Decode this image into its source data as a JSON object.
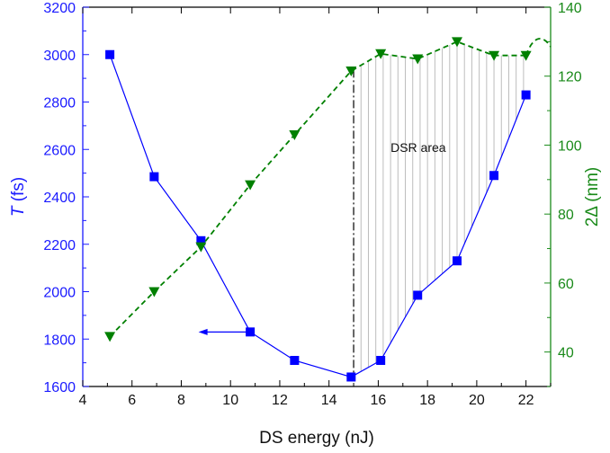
{
  "chart_data": {
    "type": "line",
    "title": "",
    "xlabel": "DS energy (nJ)",
    "ylabel_left_symbol": "T",
    "ylabel_left_unit": " (fs)",
    "ylabel_right": "2Δ (nm)",
    "xlim": [
      4,
      23
    ],
    "ylim_left": [
      1600,
      3200
    ],
    "ylim_right": [
      30,
      140
    ],
    "x_ticks": [
      4,
      6,
      8,
      10,
      12,
      14,
      16,
      18,
      20,
      22
    ],
    "y_left_ticks": [
      1600,
      1800,
      2000,
      2200,
      2400,
      2600,
      2800,
      3000,
      3200
    ],
    "y_right_ticks": [
      40,
      60,
      80,
      100,
      120,
      140
    ],
    "grid": false,
    "series": [
      {
        "axis": "left",
        "color": "#0000ff",
        "marker": "square",
        "line": "solid",
        "x": [
          5.1,
          6.9,
          8.8,
          10.8,
          12.6,
          14.9,
          16.1,
          17.6,
          19.2,
          20.7,
          22.0
        ],
        "y": [
          3000,
          2485,
          2215,
          1830,
          1710,
          1640,
          1710,
          1985,
          2130,
          2490,
          2830
        ]
      },
      {
        "axis": "right",
        "color": "#008000",
        "marker": "triangle-down",
        "line": "dashed",
        "x": [
          5.1,
          6.9,
          8.8,
          10.8,
          12.6,
          14.9,
          16.1,
          17.6,
          19.2,
          20.7,
          22.0
        ],
        "y": [
          44.5,
          57.5,
          70.5,
          88.5,
          103,
          121.5,
          126.5,
          125,
          130,
          126,
          126
        ]
      }
    ],
    "annotations": {
      "region_label": "DSR area",
      "region_x_start": 15.0,
      "arrow_left_from_x": 10.7,
      "arrow_left_to_x": 8.7,
      "arrow_y": 1830,
      "tail_curve_x": [
        22.0,
        22.3,
        22.7,
        23.0
      ],
      "tail_curve_y": [
        126,
        132,
        132,
        128.5
      ]
    }
  },
  "colors": {
    "left_axis": "#1a1aff",
    "right_axis": "#1a8a1a",
    "hatch": "#bdbdbd"
  }
}
